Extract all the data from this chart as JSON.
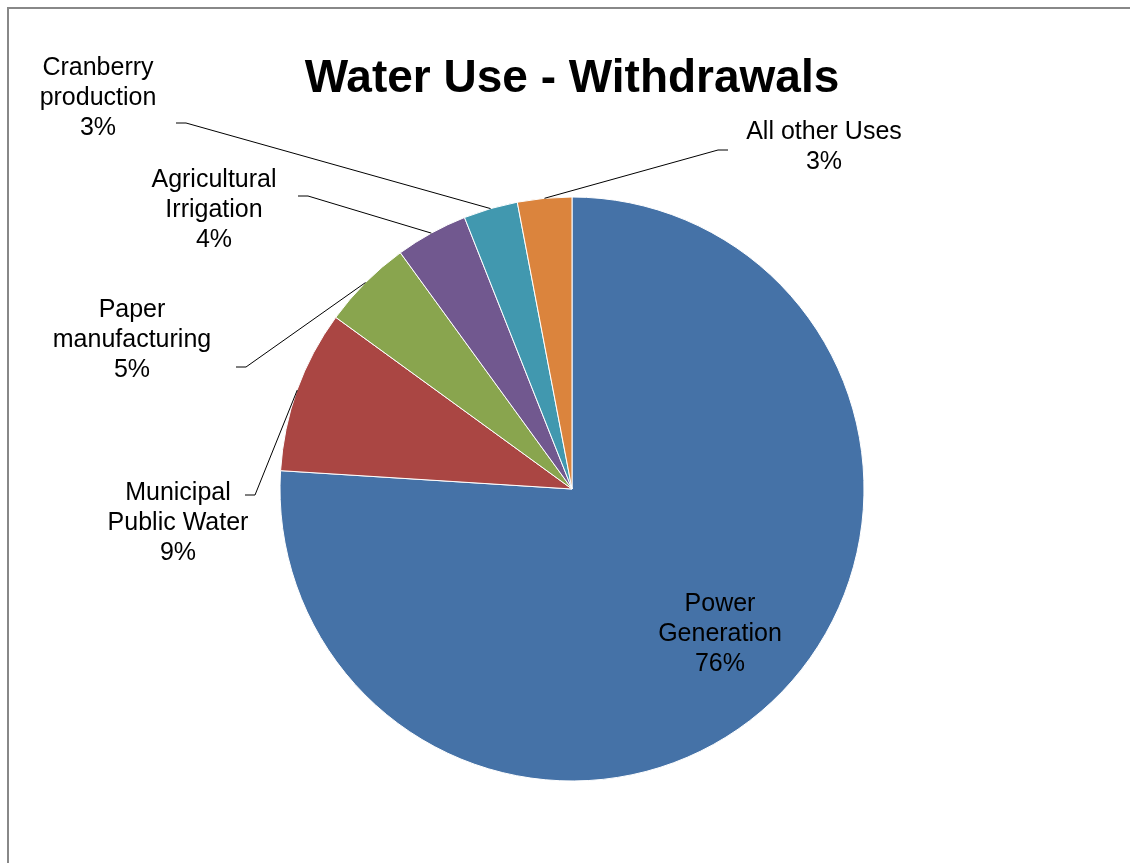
{
  "chart_data": {
    "type": "pie",
    "title": "Water Use - Withdrawals",
    "categories": [
      "Power Generation",
      "Municipal Public Water",
      "Paper manufacturing",
      "Agricultural Irrigation",
      "Cranberry production",
      "All other Uses"
    ],
    "values": [
      76,
      9,
      5,
      4,
      3,
      3
    ],
    "value_labels": [
      "76%",
      "9%",
      "5%",
      "4%",
      "3%",
      "3%"
    ],
    "colors": [
      "#4572a7",
      "#aa4643",
      "#89a54e",
      "#71588f",
      "#4198af",
      "#db843d"
    ]
  }
}
